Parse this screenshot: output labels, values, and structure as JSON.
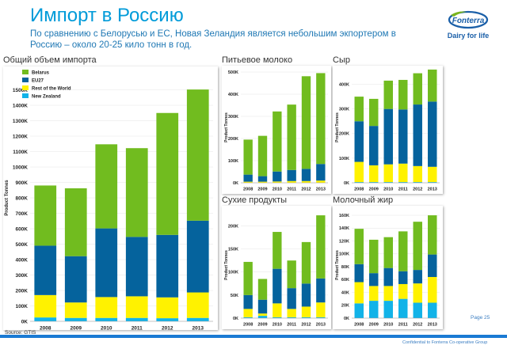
{
  "header": {
    "title": "Импорт в Россию",
    "subtitle": "По сравнению с Белорусью и ЕС, Новая Зеландия является небольшим экпортером в Россию – около 20-25 кило тонн в год."
  },
  "logo": {
    "brand": "Fonterra",
    "tagline": "Dairy for life",
    "colors": {
      "brand": "#1a5fa8",
      "leaf": "#7ab51d"
    }
  },
  "colors": {
    "belarus": "#71bc1f",
    "eu27": "#05639d",
    "rest_of_world": "#fff200",
    "new_zealand": "#12b3e8",
    "accent": "#009bd9"
  },
  "footer": {
    "source": "Source: GTIS",
    "page": "Page 25",
    "confidential": "Confidential to Fonterra Co-operative Group"
  },
  "chart_data": [
    {
      "type": "bar",
      "stacked": true,
      "title": "Общий объем импорта",
      "ylabel": "Product Tonnes",
      "ylim": [
        0,
        1600
      ],
      "yticks": [
        "0K",
        "100K",
        "200K",
        "300K",
        "400K",
        "500K",
        "600K",
        "700K",
        "800K",
        "900K",
        "1000K",
        "1100K",
        "1200K",
        "1300K",
        "1400K",
        "1500K"
      ],
      "categories": [
        "2008",
        "2009",
        "2010",
        "2011",
        "2012",
        "2013"
      ],
      "legend": "top-left",
      "series": [
        {
          "name": "New Zealand",
          "values": [
            25,
            22,
            22,
            22,
            20,
            22
          ]
        },
        {
          "name": "Rest of the World",
          "values": [
            145,
            100,
            135,
            140,
            135,
            165
          ]
        },
        {
          "name": "EU27",
          "values": [
            320,
            300,
            445,
            385,
            405,
            465
          ]
        },
        {
          "name": "Belarus",
          "values": [
            390,
            440,
            545,
            575,
            790,
            850
          ]
        }
      ]
    },
    {
      "type": "bar",
      "stacked": true,
      "title": "Питьевое молоко",
      "ylabel": "Product Tonnes",
      "ylim": [
        0,
        500
      ],
      "yticks": [
        "0K",
        "100K",
        "200K",
        "300K",
        "400K",
        "500K"
      ],
      "categories": [
        "2008",
        "2009",
        "2010",
        "2011",
        "2012",
        "2013"
      ],
      "series": [
        {
          "name": "New Zealand",
          "values": [
            0,
            0,
            0,
            0,
            0,
            0
          ]
        },
        {
          "name": "Rest of the World",
          "values": [
            5,
            5,
            6,
            8,
            8,
            10
          ]
        },
        {
          "name": "EU27",
          "values": [
            32,
            25,
            45,
            50,
            55,
            75
          ]
        },
        {
          "name": "Belarus",
          "values": [
            158,
            182,
            271,
            295,
            418,
            410
          ]
        }
      ]
    },
    {
      "type": "bar",
      "stacked": true,
      "title": "Сыр",
      "ylabel": "Product Tonnes",
      "ylim": [
        0,
        450
      ],
      "yticks": [
        "0K",
        "100K",
        "200K",
        "300K",
        "400K"
      ],
      "categories": [
        "2008",
        "2009",
        "2010",
        "2011",
        "2012",
        "2013"
      ],
      "series": [
        {
          "name": "New Zealand",
          "values": [
            3,
            3,
            3,
            3,
            3,
            3
          ]
        },
        {
          "name": "Rest of the World",
          "values": [
            82,
            68,
            72,
            75,
            65,
            62
          ]
        },
        {
          "name": "EU27",
          "values": [
            165,
            160,
            225,
            220,
            250,
            265
          ]
        },
        {
          "name": "Belarus",
          "values": [
            100,
            110,
            115,
            120,
            127,
            130
          ]
        }
      ]
    },
    {
      "type": "bar",
      "stacked": true,
      "title": "Сухие продукты",
      "ylabel": "Product Tonnes",
      "ylim": [
        0,
        230
      ],
      "yticks": [
        "0K",
        "50K",
        "100K",
        "150K",
        "200K"
      ],
      "categories": [
        "2008",
        "2009",
        "2010",
        "2011",
        "2012",
        "2013"
      ],
      "series": [
        {
          "name": "New Zealand",
          "values": [
            2,
            5,
            2,
            2,
            2,
            2
          ]
        },
        {
          "name": "Rest of the World",
          "values": [
            18,
            5,
            30,
            18,
            23,
            32
          ]
        },
        {
          "name": "EU27",
          "values": [
            30,
            30,
            75,
            45,
            50,
            52
          ]
        },
        {
          "name": "Belarus",
          "values": [
            72,
            45,
            80,
            60,
            90,
            137
          ]
        }
      ]
    },
    {
      "type": "bar",
      "stacked": true,
      "title": "Молочный жир",
      "ylabel": "Product Tonnes",
      "ylim": [
        0,
        165
      ],
      "yticks": [
        "0K",
        "20K",
        "40K",
        "60K",
        "80K",
        "100K",
        "120K",
        "140K",
        "160K"
      ],
      "categories": [
        "2008",
        "2009",
        "2010",
        "2011",
        "2012",
        "2013"
      ],
      "series": [
        {
          "name": "New Zealand",
          "values": [
            23,
            27,
            27,
            30,
            24,
            24
          ]
        },
        {
          "name": "Rest of the World",
          "values": [
            33,
            23,
            23,
            23,
            30,
            40
          ]
        },
        {
          "name": "EU27",
          "values": [
            28,
            20,
            28,
            20,
            21,
            35
          ]
        },
        {
          "name": "Belarus",
          "values": [
            55,
            52,
            48,
            62,
            75,
            61
          ]
        }
      ]
    }
  ]
}
